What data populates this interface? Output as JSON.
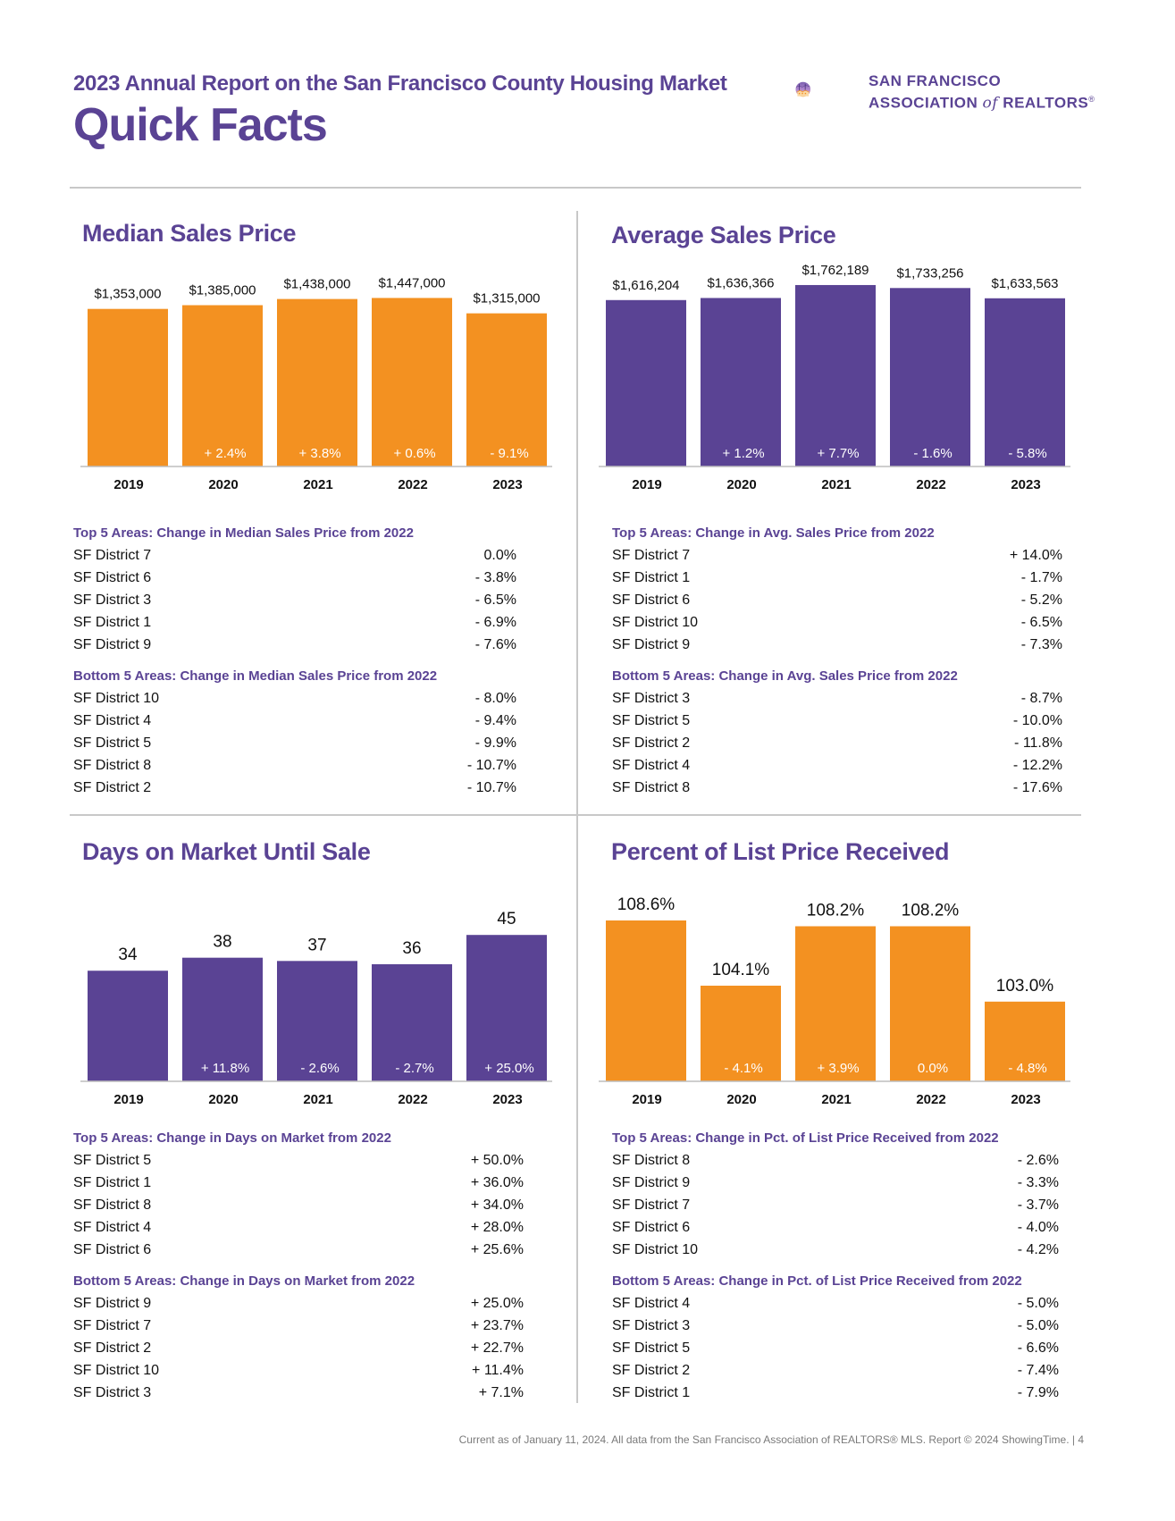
{
  "header": {
    "report_title": "2023 Annual Report on the San Francisco County Housing Market",
    "main_title": "Quick Facts",
    "logo_line1": "SAN FRANCISCO",
    "logo_line2_a": "ASSOCIATION ",
    "logo_line2_of": "of",
    "logo_line2_b": " REALTORS",
    "logo_mark": "®"
  },
  "colors": {
    "purple": "#5a4394",
    "orange": "#f39121",
    "rule": "#c8c8c8"
  },
  "panels": {
    "median": {
      "title": "Median Sales Price",
      "top_heading": "Top 5 Areas: Change in Median Sales Price from 2022",
      "top": [
        {
          "area": "SF District 7",
          "value": "0.0%"
        },
        {
          "area": "SF District 6",
          "value": "- 3.8%"
        },
        {
          "area": "SF District 3",
          "value": "- 6.5%"
        },
        {
          "area": "SF District 1",
          "value": "- 6.9%"
        },
        {
          "area": "SF District 9",
          "value": "- 7.6%"
        }
      ],
      "bottom_heading": "Bottom 5 Areas: Change in Median Sales Price from 2022",
      "bottom": [
        {
          "area": "SF District 10",
          "value": "- 8.0%"
        },
        {
          "area": "SF District 4",
          "value": "- 9.4%"
        },
        {
          "area": "SF District 5",
          "value": "- 9.9%"
        },
        {
          "area": "SF District 8",
          "value": "- 10.7%"
        },
        {
          "area": "SF District 2",
          "value": "- 10.7%"
        }
      ]
    },
    "average": {
      "title": "Average Sales Price",
      "top_heading": "Top 5 Areas: Change in Avg. Sales Price from 2022",
      "top": [
        {
          "area": "SF District 7",
          "value": "+ 14.0%"
        },
        {
          "area": "SF District 1",
          "value": "- 1.7%"
        },
        {
          "area": "SF District 6",
          "value": "- 5.2%"
        },
        {
          "area": "SF District 10",
          "value": "- 6.5%"
        },
        {
          "area": "SF District 9",
          "value": "- 7.3%"
        }
      ],
      "bottom_heading": "Bottom 5 Areas: Change in Avg. Sales Price from 2022",
      "bottom": [
        {
          "area": "SF District 3",
          "value": "- 8.7%"
        },
        {
          "area": "SF District 5",
          "value": "- 10.0%"
        },
        {
          "area": "SF District 2",
          "value": "- 11.8%"
        },
        {
          "area": "SF District 4",
          "value": "- 12.2%"
        },
        {
          "area": "SF District 8",
          "value": "- 17.6%"
        }
      ]
    },
    "dom": {
      "title": "Days on Market Until Sale",
      "top_heading": "Top 5 Areas: Change in Days on Market from 2022",
      "top": [
        {
          "area": "SF District 5",
          "value": "+ 50.0%"
        },
        {
          "area": "SF District 1",
          "value": "+ 36.0%"
        },
        {
          "area": "SF District 8",
          "value": "+ 34.0%"
        },
        {
          "area": "SF District 4",
          "value": "+ 28.0%"
        },
        {
          "area": "SF District 6",
          "value": "+ 25.6%"
        }
      ],
      "bottom_heading": "Bottom 5 Areas: Change in Days on Market from 2022",
      "bottom": [
        {
          "area": "SF District 9",
          "value": "+ 25.0%"
        },
        {
          "area": "SF District 7",
          "value": "+ 23.7%"
        },
        {
          "area": "SF District 2",
          "value": "+ 22.7%"
        },
        {
          "area": "SF District 10",
          "value": "+ 11.4%"
        },
        {
          "area": "SF District 3",
          "value": "+ 7.1%"
        }
      ]
    },
    "pct": {
      "title": "Percent of List Price Received",
      "top_heading": "Top 5 Areas: Change in Pct. of List Price Received from 2022",
      "top": [
        {
          "area": "SF District 8",
          "value": "- 2.6%"
        },
        {
          "area": "SF District 9",
          "value": "- 3.3%"
        },
        {
          "area": "SF District 7",
          "value": "- 3.7%"
        },
        {
          "area": "SF District 6",
          "value": "- 4.0%"
        },
        {
          "area": "SF District 10",
          "value": "- 4.2%"
        }
      ],
      "bottom_heading": "Bottom 5 Areas: Change in Pct. of List Price Received from 2022",
      "bottom": [
        {
          "area": "SF District 4",
          "value": "- 5.0%"
        },
        {
          "area": "SF District 3",
          "value": "- 5.0%"
        },
        {
          "area": "SF District 5",
          "value": "- 6.6%"
        },
        {
          "area": "SF District 2",
          "value": "- 7.4%"
        },
        {
          "area": "SF District 1",
          "value": "- 7.9%"
        }
      ]
    }
  },
  "chart_data": [
    {
      "id": "median",
      "type": "bar",
      "title": "Median Sales Price",
      "categories": [
        "2019",
        "2020",
        "2021",
        "2022",
        "2023"
      ],
      "values": [
        1353000,
        1385000,
        1438000,
        1447000,
        1315000
      ],
      "value_labels": [
        "$1,353,000",
        "$1,385,000",
        "$1,438,000",
        "$1,447,000",
        "$1,315,000"
      ],
      "change_labels": [
        "",
        "+ 2.4%",
        "+ 3.8%",
        "+ 0.6%",
        "- 9.1%"
      ],
      "color": "#f39121",
      "ylim": [
        0,
        1550000
      ]
    },
    {
      "id": "average",
      "type": "bar",
      "title": "Average Sales Price",
      "categories": [
        "2019",
        "2020",
        "2021",
        "2022",
        "2023"
      ],
      "values": [
        1616204,
        1636366,
        1762189,
        1733256,
        1633563
      ],
      "value_labels": [
        "$1,616,204",
        "$1,636,366",
        "$1,762,189",
        "$1,733,256",
        "$1,633,563"
      ],
      "change_labels": [
        "",
        "+ 1.2%",
        "+ 7.7%",
        "- 1.6%",
        "- 5.8%"
      ],
      "color": "#5a4394",
      "ylim": [
        0,
        1840000
      ]
    },
    {
      "id": "dom",
      "type": "bar",
      "title": "Days on Market Until Sale",
      "categories": [
        "2019",
        "2020",
        "2021",
        "2022",
        "2023"
      ],
      "values": [
        34,
        38,
        37,
        36,
        45
      ],
      "value_labels": [
        "34",
        "38",
        "37",
        "36",
        "45"
      ],
      "change_labels": [
        "",
        "+ 11.8%",
        "- 2.6%",
        "- 2.7%",
        "+ 25.0%"
      ],
      "color": "#5a4394",
      "ylim": [
        0,
        50
      ]
    },
    {
      "id": "pct",
      "type": "bar",
      "title": "Percent of List Price Received",
      "categories": [
        "2019",
        "2020",
        "2021",
        "2022",
        "2023"
      ],
      "values": [
        108.6,
        104.1,
        108.2,
        108.2,
        103.0
      ],
      "value_labels": [
        "108.6%",
        "104.1%",
        "108.2%",
        "108.2%",
        "103.0%"
      ],
      "change_labels": [
        "",
        "- 4.1%",
        "+ 3.9%",
        "0.0%",
        "- 4.8%"
      ],
      "color": "#f39121",
      "ylim": [
        97.5,
        108.6
      ]
    }
  ],
  "footer": "Current as of January 11, 2024. All data from the San Francisco Association of REALTORS® MLS. Report © 2024 ShowingTime.  |  4"
}
